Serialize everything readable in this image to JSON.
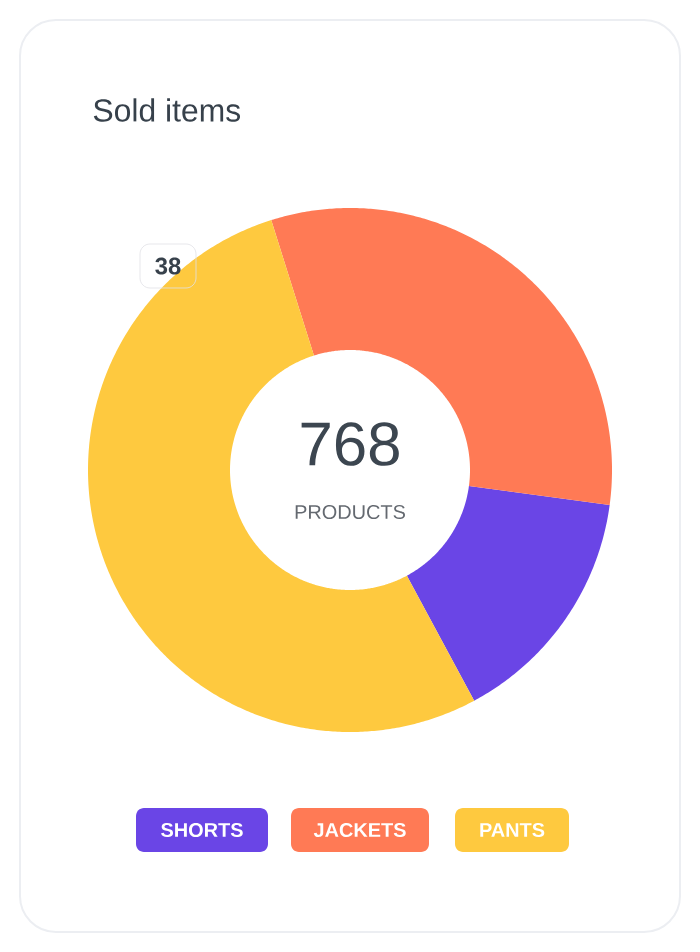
{
  "chart_data": {
    "type": "donut",
    "title": "Sold items",
    "categories": [
      "SHORTS",
      "JACKETS",
      "PANTS"
    ],
    "values": [
      15,
      32,
      53
    ],
    "colors": [
      "#6a45e6",
      "#ff7a55",
      "#fec93f"
    ],
    "legend": "bottom",
    "annotations": [
      "768",
      "PRODUCTS",
      "38"
    ]
  }
}
